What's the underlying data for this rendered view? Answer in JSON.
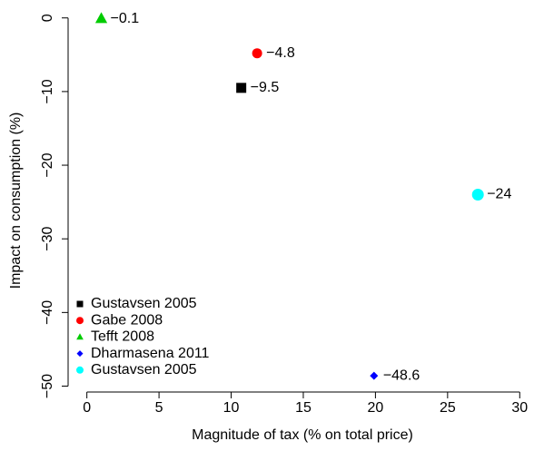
{
  "chart_data": {
    "type": "scatter",
    "xlabel": "Magnitude of tax (% on total price)",
    "ylabel": "Impact on consumption (%)",
    "xlim": [
      -1.3,
      30.8
    ],
    "ylim": [
      -50.8,
      1.2
    ],
    "xticks": [
      0,
      5,
      10,
      15,
      20,
      25,
      30
    ],
    "yticks": [
      {
        "value": -50,
        "label": "−50"
      },
      {
        "value": -40,
        "label": "−40"
      },
      {
        "value": -30,
        "label": "−30"
      },
      {
        "value": -20,
        "label": "−20"
      },
      {
        "value": -10,
        "label": "−10"
      },
      0
    ],
    "legend": "bottom-left",
    "series": [
      {
        "name": "Gustavsen 2005",
        "color": "#000000",
        "marker": "square",
        "x": [
          10.7
        ],
        "values": [
          -9.5
        ],
        "value_labels": [
          "−9.5"
        ]
      },
      {
        "name": "Gabe 2008",
        "color": "#ff0000",
        "marker": "circle",
        "x": [
          11.8
        ],
        "values": [
          -4.8
        ],
        "value_labels": [
          "−4.8"
        ]
      },
      {
        "name": "Tefft 2008",
        "color": "#00cc00",
        "marker": "triangle",
        "x": [
          1.0
        ],
        "values": [
          -0.1
        ],
        "value_labels": [
          "−0.1"
        ]
      },
      {
        "name": "Dharmasena 2011",
        "color": "#0000ff",
        "marker": "diamond",
        "x": [
          19.9
        ],
        "values": [
          -48.6
        ],
        "value_labels": [
          "−48.6"
        ]
      },
      {
        "name": "Gustavsen 2005",
        "color": "#00ffff",
        "marker": "circle",
        "x": [
          27.1
        ],
        "values": [
          -24
        ],
        "value_labels": [
          "−24"
        ]
      }
    ]
  }
}
